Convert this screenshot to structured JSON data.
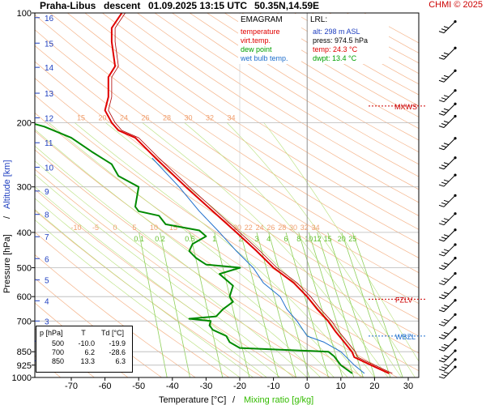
{
  "header": {
    "station": "Praha-Libus",
    "type": "descent",
    "datetime": "01.09.2025 13:15 UTC",
    "coords": "50.35N,14.59E",
    "copyright": "CHMI © 2025"
  },
  "legend": {
    "title": "EMAGRAM",
    "items": [
      {
        "label": "temperature",
        "color": "#e00000"
      },
      {
        "label": "virt.temp.",
        "color": "#e00000"
      },
      {
        "label": "dew point",
        "color": "#00a000"
      },
      {
        "label": "wet bulb temp.",
        "color": "#1e6ecc"
      }
    ]
  },
  "lrl": {
    "title": "LRL:",
    "alt": "alt: 298 m ASL",
    "press": "press: 974.5 hPa",
    "temp": "temp: 24.3 °C",
    "dwpt": "dwpt: 13.4 °C"
  },
  "point_table": {
    "headers": [
      "p [hPa]",
      "T",
      "Td [°C]"
    ],
    "rows": [
      [
        "500",
        "-10.0",
        "-19.9"
      ],
      [
        "700",
        "6.2",
        "-28.6"
      ],
      [
        "850",
        "13.3",
        "6.3"
      ]
    ]
  },
  "levels": [
    {
      "label": "MXWS",
      "p": 180,
      "color": "#cc0000"
    },
    {
      "label": "FZLV",
      "p": 610,
      "color": "#cc0000"
    },
    {
      "label": "WBZL",
      "p": 770,
      "color": "#1e6ecc"
    }
  ],
  "chart_data": {
    "type": "line",
    "xlabel": "Temperature [°C]",
    "xlabel_sep": "/",
    "xlabel2": "Mixing ratio [g/kg]",
    "ylabel": "Pressure [hPa]",
    "ylabel_sep": "/",
    "ylabel2": "Altitude [km]",
    "xlim": [
      -80,
      37
    ],
    "ylim": [
      1000,
      100
    ],
    "yscale": "log",
    "x_ticks": [
      -70,
      -60,
      -50,
      -40,
      -30,
      -20,
      -10,
      0,
      10,
      20,
      30
    ],
    "p_ticks": [
      100,
      200,
      300,
      400,
      500,
      600,
      700,
      850,
      925,
      1000
    ],
    "altitude_ticks": [
      {
        "km": 1,
        "p": 900
      },
      {
        "km": 2,
        "p": 795
      },
      {
        "km": 3,
        "p": 700
      },
      {
        "km": 4,
        "p": 616
      },
      {
        "km": 5,
        "p": 540
      },
      {
        "km": 6,
        "p": 472
      },
      {
        "km": 7,
        "p": 411
      },
      {
        "km": 8,
        "p": 357
      },
      {
        "km": 9,
        "p": 308
      },
      {
        "km": 10,
        "p": 265
      },
      {
        "km": 11,
        "p": 227
      },
      {
        "km": 12,
        "p": 194
      },
      {
        "km": 13,
        "p": 166
      },
      {
        "km": 14,
        "p": 141
      },
      {
        "km": 15,
        "p": 121
      },
      {
        "km": 16,
        "p": 103
      }
    ],
    "mixing_ratio_labels": [
      "0.1",
      "0.2",
      "0.5",
      "1",
      "2",
      "3",
      "4",
      "6",
      "8",
      "10",
      "12",
      "15",
      "20",
      "25"
    ],
    "mixing_ratio_values": [
      0.1,
      0.2,
      0.5,
      1,
      2,
      3,
      4,
      6,
      8,
      10,
      12,
      15,
      20,
      25
    ],
    "theta_labels_200": [
      "15",
      "20",
      "24",
      "26",
      "28",
      "30",
      "32",
      "34"
    ],
    "theta_labels_400": [
      "-10",
      "-5",
      "0",
      "5",
      "10",
      "15",
      "20",
      "22",
      "24",
      "26",
      "28",
      "30",
      "32",
      "34"
    ],
    "series": [
      {
        "name": "temperature",
        "color": "#e00000",
        "points": [
          [
            974.5,
            24.3
          ],
          [
            925,
            19
          ],
          [
            880,
            14
          ],
          [
            850,
            13.3
          ],
          [
            800,
            11
          ],
          [
            750,
            8.5
          ],
          [
            700,
            6.2
          ],
          [
            650,
            3
          ],
          [
            600,
            0
          ],
          [
            550,
            -4
          ],
          [
            500,
            -10
          ],
          [
            450,
            -15
          ],
          [
            400,
            -21
          ],
          [
            350,
            -28
          ],
          [
            300,
            -36
          ],
          [
            250,
            -45
          ],
          [
            220,
            -51
          ],
          [
            210,
            -56
          ],
          [
            200,
            -58
          ],
          [
            185,
            -60
          ],
          [
            170,
            -59
          ],
          [
            150,
            -59
          ],
          [
            140,
            -57
          ],
          [
            120,
            -58
          ],
          [
            110,
            -58
          ],
          [
            100,
            -55
          ]
        ]
      },
      {
        "name": "dew point",
        "color": "#008a00",
        "points": [
          [
            974.5,
            13.4
          ],
          [
            925,
            10
          ],
          [
            875,
            8
          ],
          [
            850,
            6.3
          ],
          [
            830,
            -20
          ],
          [
            800,
            -23
          ],
          [
            770,
            -24
          ],
          [
            740,
            -28
          ],
          [
            720,
            -29
          ],
          [
            700,
            -28.6
          ],
          [
            690,
            -35
          ],
          [
            680,
            -27
          ],
          [
            650,
            -25
          ],
          [
            620,
            -22
          ],
          [
            600,
            -23
          ],
          [
            560,
            -22
          ],
          [
            520,
            -26
          ],
          [
            500,
            -19.9
          ],
          [
            490,
            -30
          ],
          [
            470,
            -33
          ],
          [
            450,
            -35
          ],
          [
            430,
            -34
          ],
          [
            410,
            -30
          ],
          [
            395,
            -32
          ],
          [
            380,
            -42
          ],
          [
            360,
            -44
          ],
          [
            350,
            -50
          ],
          [
            340,
            -51
          ],
          [
            300,
            -50
          ],
          [
            280,
            -56
          ],
          [
            260,
            -58
          ],
          [
            240,
            -64
          ],
          [
            220,
            -70
          ],
          [
            205,
            -78
          ],
          [
            198,
            -84
          ]
        ]
      },
      {
        "name": "wet bulb temp.",
        "color": "#1e6ecc",
        "points": [
          [
            974.5,
            17
          ],
          [
            925,
            14
          ],
          [
            850,
            10
          ],
          [
            800,
            5
          ],
          [
            770,
            0
          ],
          [
            700,
            -3
          ],
          [
            650,
            -6
          ],
          [
            600,
            -8
          ],
          [
            550,
            -13
          ],
          [
            500,
            -16
          ],
          [
            450,
            -21
          ],
          [
            400,
            -26
          ],
          [
            350,
            -32
          ],
          [
            300,
            -38
          ],
          [
            250,
            -46
          ]
        ]
      }
    ]
  }
}
